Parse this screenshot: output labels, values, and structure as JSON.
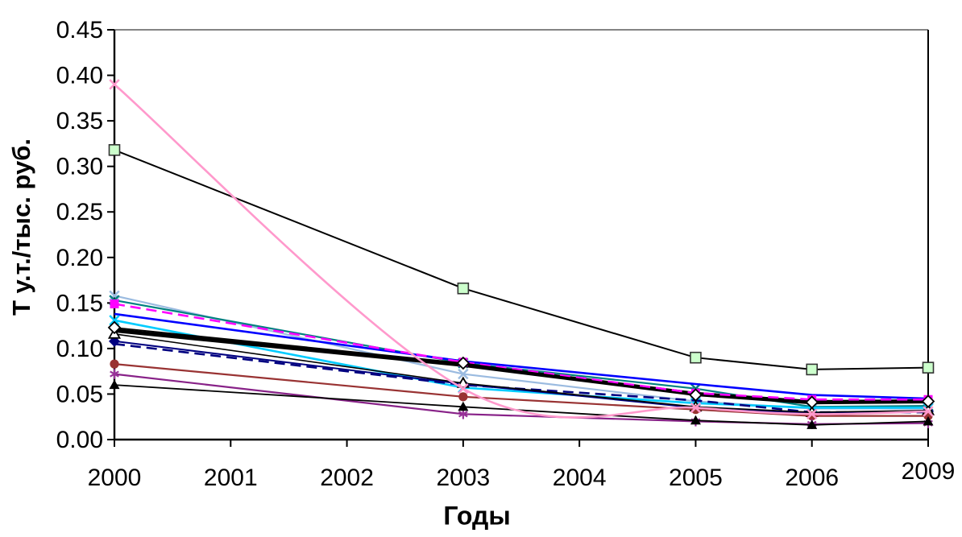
{
  "chart_data": {
    "type": "line",
    "title": "",
    "xlabel": "Годы",
    "ylabel": "Т у.т./тыс. руб.",
    "x_categories": [
      "2000",
      "2001",
      "2002",
      "2003",
      "2004",
      "2005",
      "2006",
      "2009"
    ],
    "y_ticks": [
      "0.00",
      "0.05",
      "0.10",
      "0.15",
      "0.20",
      "0.25",
      "0.30",
      "0.35",
      "0.40",
      "0.45"
    ],
    "ylim": [
      0,
      0.45
    ],
    "grid": false,
    "legend": "none",
    "sample_years": [
      "2000",
      "2003",
      "2005",
      "2006",
      "2009"
    ],
    "series": [
      {
        "name": "light-blue-x",
        "color": "#9BBBE0",
        "marker": "x",
        "line": "solid",
        "width": 2.2,
        "values": [
          0.158,
          0.072,
          0.042,
          0.034,
          0.034
        ]
      },
      {
        "name": "teal-x",
        "color": "#008080",
        "marker": "x",
        "line": "solid",
        "width": 2.2,
        "values": [
          0.153,
          0.084,
          0.056,
          0.036,
          0.037
        ]
      },
      {
        "name": "blue-plain",
        "color": "#0000FF",
        "marker": "none",
        "line": "solid",
        "width": 2.6,
        "values": [
          0.138,
          0.086,
          0.061,
          0.049,
          0.045
        ]
      },
      {
        "name": "cyan-x",
        "color": "#00CCFF",
        "marker": "x",
        "line": "solid",
        "width": 2.6,
        "values": [
          0.131,
          0.057,
          0.04,
          0.035,
          0.035
        ]
      },
      {
        "name": "navy-dashed",
        "color": "#000080",
        "marker": "none",
        "line": "dashed",
        "width": 2.6,
        "values": [
          0.105,
          0.06,
          0.043,
          0.03,
          0.03
        ]
      },
      {
        "name": "navy-diamond",
        "color": "#000080",
        "marker": "diamond",
        "line": "solid",
        "width": 2.0,
        "values": [
          0.108,
          0.061,
          0.035,
          0.029,
          0.031
        ]
      },
      {
        "name": "white-triangle",
        "color": "#000000",
        "marker": "triangle-open",
        "line": "solid",
        "width": 1.6,
        "values": [
          0.116,
          0.062,
          0.036,
          0.03,
          0.032
        ]
      },
      {
        "name": "green-square",
        "color": "#000000",
        "marker": "square",
        "marker_fill": "#CCFFCC",
        "marker_edge": "#333333",
        "line": "solid",
        "width": 2.0,
        "values": [
          0.318,
          0.166,
          0.09,
          0.077,
          0.079
        ]
      },
      {
        "name": "dark-red-circle",
        "color": "#993333",
        "marker": "circle",
        "line": "solid",
        "width": 2.2,
        "values": [
          0.083,
          0.047,
          0.033,
          0.026,
          0.026
        ]
      },
      {
        "name": "purple-asterisk",
        "color": "#882288",
        "marker": "asterisk",
        "marker_fill": "#993399",
        "line": "solid",
        "width": 2.2,
        "values": [
          0.072,
          0.028,
          0.02,
          0.017,
          0.018
        ]
      },
      {
        "name": "black-triangle",
        "color": "#000000",
        "marker": "triangle",
        "line": "solid",
        "width": 1.8,
        "values": [
          0.06,
          0.036,
          0.021,
          0.016,
          0.02
        ]
      },
      {
        "name": "thick-black",
        "color": "#000000",
        "marker": "none",
        "line": "solid",
        "width": 5.2,
        "values": [
          0.12,
          0.082,
          0.05,
          0.041,
          0.042
        ]
      },
      {
        "name": "magenta-dashed-square",
        "color": "#FF00FF",
        "marker": "square",
        "line": "dashed",
        "width": 2.6,
        "values": [
          0.149,
          0.085,
          0.051,
          0.044,
          0.044
        ]
      },
      {
        "name": "white-diamond",
        "color": "#000000",
        "marker": "diamond-open",
        "line": "solid",
        "width": 1.6,
        "values": [
          0.123,
          0.084,
          0.049,
          0.041,
          0.042
        ]
      },
      {
        "name": "pink-smooth-x",
        "color": "#FF99CC",
        "marker": "x",
        "line": "solid",
        "width": 2.6,
        "smooth": true,
        "values": [
          0.39,
          0.056,
          0.035,
          0.028,
          0.031
        ]
      }
    ],
    "layout": {
      "plot_left": 142,
      "plot_top": 37,
      "plot_right": 1152,
      "plot_bottom": 546,
      "last_x_label_raised": true,
      "axis_color": "#000000",
      "top_border_color": "#848484"
    }
  }
}
